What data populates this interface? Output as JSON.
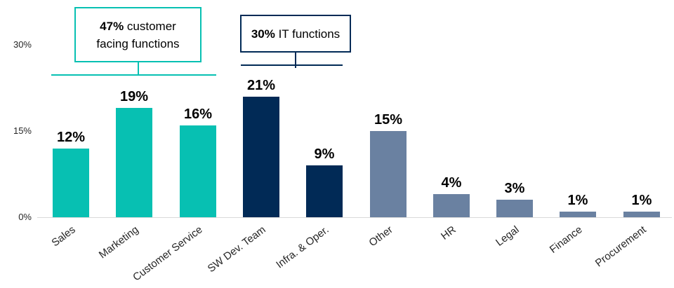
{
  "chart_data": {
    "type": "bar",
    "title": "",
    "xlabel": "",
    "ylabel": "",
    "grid": false,
    "legend": false,
    "ylim": [
      0,
      37.5
    ],
    "categories": [
      "Sales",
      "Marketing",
      "Customer Service",
      "SW Dev. Team",
      "Infra. & Oper.",
      "Other",
      "HR",
      "Legal",
      "Finance",
      "Procurement"
    ],
    "values": [
      12,
      19,
      16,
      21,
      9,
      15,
      4,
      3,
      1,
      1
    ],
    "value_labels": [
      "12%",
      "19%",
      "16%",
      "21%",
      "9%",
      "15%",
      "4%",
      "3%",
      "1%",
      "1%"
    ],
    "bar_colors": [
      "#07c0b2",
      "#07c0b2",
      "#07c0b2",
      "#012a56",
      "#012a56",
      "#6a81a1",
      "#6a81a1",
      "#6a81a1",
      "#6a81a1",
      "#6a81a1"
    ],
    "yticks": [
      {
        "label": "30%",
        "value": 30
      },
      {
        "label": "15%",
        "value": 15
      },
      {
        "label": "0%",
        "value": 0
      }
    ],
    "annotations": [
      {
        "value": "47%",
        "line1_rest": " customer",
        "line2": "facing functions",
        "full_text": "47% customer facing functions",
        "color": "#07c0b2",
        "covers": [
          "Sales",
          "Marketing",
          "Customer Service"
        ]
      },
      {
        "value": "30%",
        "text": " IT functions",
        "full_text": "30% IT functions",
        "color": "#012a56",
        "covers": [
          "SW Dev. Team",
          "Infra. & Oper."
        ]
      }
    ]
  },
  "colors": {
    "teal": "#07c0b2",
    "navy": "#012a56",
    "slate": "#6a81a1",
    "axis_line": "#d9d9d9",
    "text": "#000000"
  }
}
